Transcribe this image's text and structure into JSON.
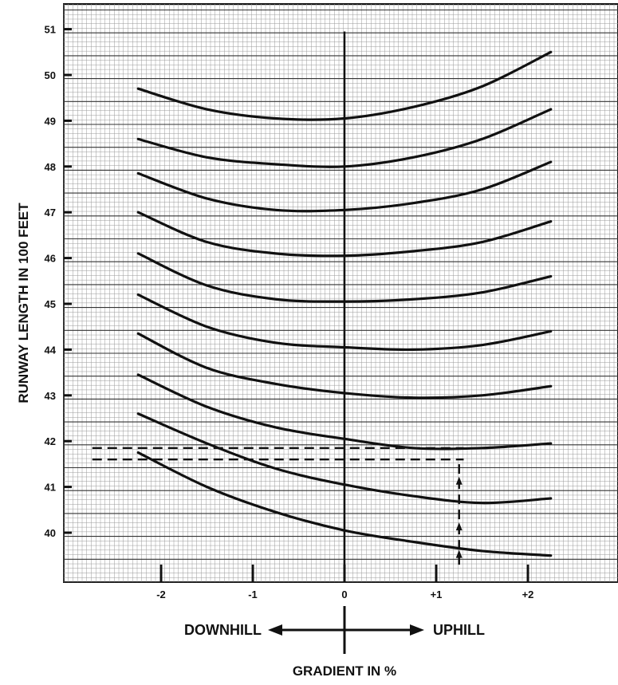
{
  "chart_data": {
    "type": "line",
    "xlabel": "GRADIENT IN %",
    "ylabel": "RUNWAY LENGTH IN 100 FEET",
    "xlim": [
      -3,
      3
    ],
    "ylim": [
      39,
      51
    ],
    "x_tick_labels": [
      {
        "value": -2,
        "label": "-2"
      },
      {
        "value": -1,
        "label": "-1"
      },
      {
        "value": 0,
        "label": "0"
      },
      {
        "value": 1,
        "label": "+1"
      },
      {
        "value": 2,
        "label": "+2"
      }
    ],
    "y_ticks": [
      40,
      41,
      42,
      43,
      44,
      45,
      46,
      47,
      48,
      49,
      50,
      51
    ],
    "direction_labels": {
      "left": "DOWNHILL",
      "right": "UPHILL"
    },
    "grid": true,
    "x": [
      -2.25,
      -1.5,
      -0.75,
      0,
      0.75,
      1.5,
      2.25
    ],
    "series": [
      {
        "values": [
          41.75,
          41.0,
          40.45,
          40.05,
          39.8,
          39.6,
          39.5
        ]
      },
      {
        "values": [
          42.6,
          41.95,
          41.4,
          41.05,
          40.8,
          40.65,
          40.75
        ]
      },
      {
        "values": [
          43.45,
          42.75,
          42.3,
          42.05,
          41.85,
          41.85,
          41.95
        ]
      },
      {
        "values": [
          44.35,
          43.6,
          43.25,
          43.05,
          42.95,
          43.0,
          43.2
        ]
      },
      {
        "values": [
          45.2,
          44.5,
          44.15,
          44.05,
          44.0,
          44.1,
          44.4
        ]
      },
      {
        "values": [
          46.1,
          45.4,
          45.1,
          45.05,
          45.1,
          45.25,
          45.6
        ]
      },
      {
        "values": [
          47.0,
          46.35,
          46.1,
          46.05,
          46.15,
          46.35,
          46.8
        ]
      },
      {
        "values": [
          47.85,
          47.3,
          47.05,
          47.05,
          47.2,
          47.5,
          48.1
        ]
      },
      {
        "values": [
          48.6,
          48.2,
          48.05,
          48.0,
          48.2,
          48.6,
          49.25
        ]
      },
      {
        "values": [
          49.7,
          49.25,
          49.05,
          49.05,
          49.3,
          49.75,
          50.5
        ]
      }
    ],
    "guide_lines": [
      {
        "x1": -2.75,
        "x2": 1.3,
        "y": 41.85
      },
      {
        "x1": -2.75,
        "x2": 1.3,
        "y": 41.6
      }
    ],
    "guide_marker": {
      "x": 1.25,
      "y_from": 39.3,
      "y_to": 41.6
    }
  }
}
